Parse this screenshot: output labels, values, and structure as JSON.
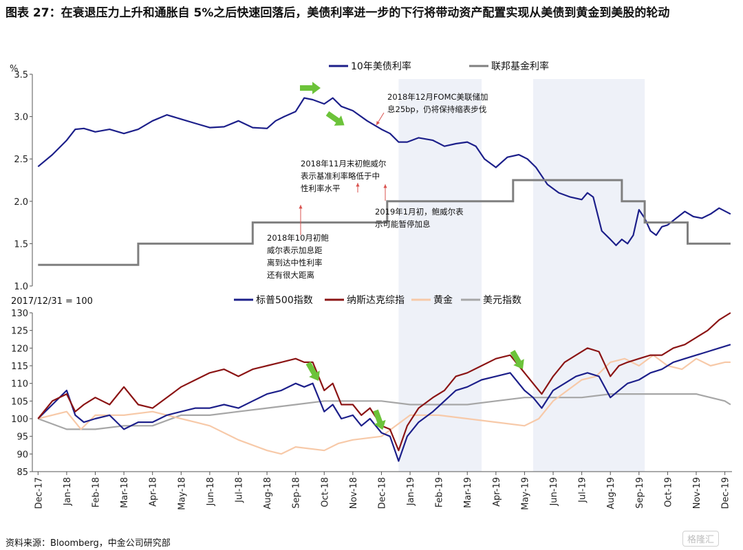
{
  "title": "图表 27：在衰退压力上升和通胀自 5%之后快速回落后，美债利率进一步的下行将带动资产配置实现从美债到黄金到美股的轮动",
  "source": "资料来源：Bloomberg，中金公司研究部",
  "watermark": "格隆汇",
  "colors": {
    "ust10y": "#1c1f8a",
    "fedfunds": "#7f7f7f",
    "spx": "#1c1f8a",
    "nasdaq": "#8b1414",
    "gold": "#f7c9a8",
    "dxy": "#a6a6a6",
    "shade": "#eef1f8",
    "arrow": "#6cc33a",
    "annot_arrow": "#d9534f"
  },
  "x_axis_labels": [
    "Dec-17",
    "Jan-18",
    "Feb-18",
    "Mar-18",
    "Apr-18",
    "May-18",
    "Jun-18",
    "Jul-18",
    "Aug-18",
    "Sep-18",
    "Oct-18",
    "Nov-18",
    "Dec-18",
    "Jan-19",
    "Feb-19",
    "Mar-19",
    "Apr-19",
    "May-19",
    "Jun-19",
    "Jul-19",
    "Aug-19",
    "Sep-19",
    "Oct-19",
    "Nov-19",
    "Dec-19"
  ],
  "shaded_periods": [
    {
      "from_month": 12.6,
      "to_month": 15.5
    },
    {
      "from_month": 17.3,
      "to_month": 21.2
    }
  ],
  "annotations": [
    {
      "lines": [
        "2018年12月FOMC美联储加",
        "息25bp，仍将保持缩表步伐"
      ]
    },
    {
      "lines": [
        "2018年11月末初鲍威尔",
        "表示基准利率略低于中",
        "性利率水平"
      ]
    },
    {
      "lines": [
        "2019年1月初，鲍威尔表",
        "示可能暂停加息"
      ]
    },
    {
      "lines": [
        "2018年10月初鲍",
        "威尔表示加息距",
        "离到达中性利率",
        "还有很大距离"
      ]
    }
  ],
  "chart_data": [
    {
      "type": "line",
      "ylabel": "%",
      "ylim": [
        1.0,
        3.5
      ],
      "yticks": [
        "1.0",
        "1.5",
        "2.0",
        "2.5",
        "3.0",
        "3.5"
      ],
      "legend_position": "top-center",
      "series": [
        {
          "name": "10年美债利率",
          "x_month": [
            0,
            0.5,
            1,
            1.3,
            1.6,
            2,
            2.5,
            3,
            3.5,
            4,
            4.5,
            5,
            5.5,
            6,
            6.5,
            7,
            7.5,
            8,
            8.3,
            8.6,
            9,
            9.3,
            9.6,
            10,
            10.3,
            10.6,
            11,
            11.5,
            12,
            12.3,
            12.6,
            12.9,
            13.3,
            13.8,
            14.2,
            14.6,
            15,
            15.3,
            15.6,
            16,
            16.4,
            16.8,
            17.1,
            17.4,
            17.8,
            18.2,
            18.6,
            19,
            19.2,
            19.4,
            19.7,
            20,
            20.2,
            20.4,
            20.6,
            20.8,
            21,
            21.2,
            21.4,
            21.6,
            21.8,
            22,
            22.3,
            22.6,
            22.9,
            23.2,
            23.5,
            23.8,
            24.2
          ],
          "values": [
            2.41,
            2.55,
            2.72,
            2.85,
            2.86,
            2.82,
            2.85,
            2.8,
            2.85,
            2.95,
            3.02,
            2.97,
            2.92,
            2.87,
            2.88,
            2.95,
            2.87,
            2.86,
            2.95,
            3.0,
            3.06,
            3.22,
            3.2,
            3.15,
            3.22,
            3.12,
            3.07,
            2.95,
            2.85,
            2.8,
            2.7,
            2.7,
            2.75,
            2.72,
            2.65,
            2.68,
            2.7,
            2.65,
            2.5,
            2.4,
            2.52,
            2.55,
            2.5,
            2.4,
            2.2,
            2.1,
            2.05,
            2.02,
            2.1,
            2.05,
            1.65,
            1.55,
            1.48,
            1.55,
            1.5,
            1.6,
            1.9,
            1.8,
            1.65,
            1.6,
            1.7,
            1.72,
            1.8,
            1.88,
            1.82,
            1.8,
            1.85,
            1.92,
            1.85
          ]
        },
        {
          "name": "联邦基金利率",
          "step_x_month": [
            0,
            3.5,
            7.5,
            12.2,
            16.6,
            19.2,
            20.4,
            21.2,
            22.7,
            24.2
          ],
          "step_values": [
            1.25,
            1.5,
            1.75,
            2.0,
            2.25,
            2.25,
            2.0,
            1.75,
            1.5,
            1.5
          ]
        }
      ]
    },
    {
      "type": "line",
      "ylabel": "2017/12/31 = 100",
      "ylim": [
        85,
        130
      ],
      "yticks": [
        "85",
        "90",
        "95",
        "100",
        "105",
        "110",
        "115",
        "120",
        "125",
        "130"
      ],
      "legend_position": "top-center",
      "series": [
        {
          "name": "标普500指数",
          "x_month": [
            0,
            0.5,
            1,
            1.3,
            1.6,
            2,
            2.5,
            3,
            3.5,
            4,
            4.5,
            5,
            5.5,
            6,
            6.5,
            7,
            7.5,
            8,
            8.5,
            9,
            9.3,
            9.6,
            10,
            10.3,
            10.6,
            11,
            11.3,
            11.6,
            12,
            12.3,
            12.6,
            12.9,
            13.3,
            13.8,
            14.2,
            14.6,
            15,
            15.5,
            16,
            16.5,
            17,
            17.3,
            17.6,
            18,
            18.4,
            18.8,
            19.2,
            19.6,
            20,
            20.3,
            20.6,
            21,
            21.4,
            21.8,
            22.2,
            22.6,
            23,
            23.4,
            23.8,
            24.2
          ],
          "values": [
            100,
            104,
            108,
            101,
            99,
            100,
            101,
            97,
            99,
            99,
            101,
            102,
            103,
            103,
            104,
            103,
            105,
            107,
            108,
            110,
            109,
            110,
            102,
            104,
            100,
            101,
            98,
            100,
            96,
            95,
            88,
            95,
            99,
            102,
            105,
            108,
            109,
            111,
            112,
            113,
            108,
            106,
            103,
            108,
            110,
            112,
            113,
            112,
            106,
            108,
            110,
            111,
            113,
            114,
            116,
            117,
            118,
            119,
            120,
            121
          ]
        },
        {
          "name": "纳斯达克综指",
          "x_month": [
            0,
            0.5,
            1,
            1.3,
            1.6,
            2,
            2.5,
            3,
            3.5,
            4,
            4.5,
            5,
            5.5,
            6,
            6.5,
            7,
            7.5,
            8,
            8.5,
            9,
            9.3,
            9.6,
            10,
            10.3,
            10.6,
            11,
            11.3,
            11.6,
            12,
            12.3,
            12.6,
            12.9,
            13.3,
            13.8,
            14.2,
            14.6,
            15,
            15.5,
            16,
            16.5,
            17,
            17.3,
            17.6,
            18,
            18.4,
            18.8,
            19.2,
            19.6,
            20,
            20.3,
            20.6,
            21,
            21.4,
            21.8,
            22.2,
            22.6,
            23,
            23.4,
            23.8,
            24.2
          ],
          "values": [
            100,
            105,
            107,
            102,
            104,
            106,
            104,
            109,
            104,
            103,
            106,
            109,
            111,
            113,
            114,
            112,
            114,
            115,
            116,
            117,
            116,
            116,
            108,
            110,
            104,
            104,
            101,
            103,
            98,
            97,
            91,
            98,
            103,
            106,
            108,
            112,
            113,
            115,
            117,
            118,
            113,
            110,
            107,
            112,
            116,
            118,
            120,
            119,
            112,
            115,
            116,
            117,
            118,
            118,
            120,
            121,
            123,
            125,
            128,
            130
          ]
        },
        {
          "name": "黄金",
          "x_month": [
            0,
            1,
            1.5,
            2,
            3,
            4,
            5,
            5.5,
            6,
            7,
            8,
            8.5,
            9,
            10,
            10.5,
            11,
            12,
            12.5,
            13,
            14,
            15,
            16,
            17,
            17.5,
            18,
            19,
            19.5,
            20,
            20.5,
            21,
            21.5,
            22,
            22.5,
            23,
            23.5,
            24,
            24.2
          ],
          "values": [
            100,
            102,
            97,
            101,
            101,
            102,
            100,
            99,
            98,
            94,
            91,
            90,
            92,
            91,
            93,
            94,
            95,
            98,
            101,
            101,
            100,
            99,
            98,
            100,
            105,
            111,
            112,
            116,
            117,
            115,
            118,
            115,
            114,
            117,
            115,
            116,
            116
          ]
        },
        {
          "name": "美元指数",
          "x_month": [
            0,
            1,
            2,
            3,
            4,
            5,
            6,
            7,
            8,
            9,
            10,
            11,
            12,
            13,
            14,
            15,
            16,
            17,
            18,
            19,
            20,
            21,
            22,
            23,
            24,
            24.2
          ],
          "values": [
            100,
            97,
            97,
            98,
            98,
            101,
            101,
            102,
            103,
            104,
            105,
            105,
            105,
            104,
            104,
            104,
            105,
            106,
            106,
            106,
            107,
            107,
            107,
            107,
            105,
            104
          ]
        }
      ]
    }
  ]
}
